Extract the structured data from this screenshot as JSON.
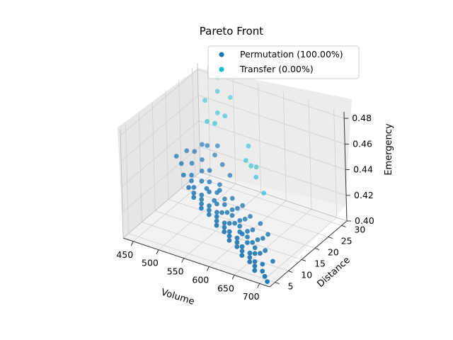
{
  "chart_data": {
    "type": "scatter3d",
    "title": "Pareto Front",
    "xlabel": "Volume",
    "ylabel": "Distance",
    "zlabel": "Emergency",
    "xlim": [
      430,
      720
    ],
    "ylim": [
      3,
      32
    ],
    "zlim": [
      0.4,
      0.485
    ],
    "xticks": [
      "450",
      "500",
      "550",
      "600",
      "650",
      "700"
    ],
    "yticks": [
      "5",
      "10",
      "15",
      "20",
      "25",
      "30"
    ],
    "zticks": [
      "0.40",
      "0.42",
      "0.44",
      "0.46",
      "0.48"
    ],
    "grid": true,
    "legend_position": "top-right",
    "series": [
      {
        "name": "Permutation (100.00%)",
        "color": "#1f77b4",
        "points": [
          [
            470,
            16,
            0.446
          ],
          [
            485,
            15,
            0.444
          ],
          [
            495,
            17,
            0.442
          ],
          [
            505,
            12,
            0.443
          ],
          [
            510,
            14,
            0.44
          ],
          [
            515,
            13,
            0.438
          ],
          [
            520,
            11,
            0.437
          ],
          [
            525,
            12,
            0.436
          ],
          [
            530,
            11,
            0.434
          ],
          [
            535,
            10,
            0.433
          ],
          [
            540,
            12,
            0.432
          ],
          [
            545,
            11,
            0.431
          ],
          [
            550,
            10,
            0.43
          ],
          [
            555,
            9,
            0.429
          ],
          [
            560,
            11,
            0.428
          ],
          [
            565,
            10,
            0.427
          ],
          [
            570,
            9,
            0.426
          ],
          [
            575,
            11,
            0.425
          ],
          [
            580,
            10,
            0.424
          ],
          [
            585,
            9,
            0.423
          ],
          [
            590,
            8,
            0.422
          ],
          [
            595,
            10,
            0.421
          ],
          [
            600,
            9,
            0.42
          ],
          [
            605,
            8,
            0.419
          ],
          [
            610,
            9,
            0.418
          ],
          [
            615,
            8,
            0.417
          ],
          [
            620,
            7,
            0.416
          ],
          [
            625,
            9,
            0.415
          ],
          [
            630,
            8,
            0.414
          ],
          [
            635,
            7,
            0.413
          ],
          [
            640,
            8,
            0.412
          ],
          [
            645,
            7,
            0.411
          ],
          [
            650,
            6,
            0.41
          ],
          [
            655,
            8,
            0.409
          ],
          [
            660,
            7,
            0.408
          ],
          [
            665,
            6,
            0.407
          ],
          [
            670,
            7,
            0.406
          ],
          [
            675,
            6,
            0.405
          ],
          [
            680,
            5,
            0.404
          ],
          [
            690,
            6,
            0.403
          ],
          [
            700,
            5,
            0.402
          ],
          [
            710,
            4,
            0.401
          ],
          [
            500,
            20,
            0.452
          ],
          [
            520,
            22,
            0.45
          ],
          [
            480,
            18,
            0.448
          ],
          [
            560,
            14,
            0.433
          ],
          [
            580,
            13,
            0.428
          ],
          [
            600,
            12,
            0.424
          ],
          [
            620,
            11,
            0.42
          ],
          [
            640,
            10,
            0.416
          ],
          [
            660,
            9,
            0.412
          ],
          [
            545,
            13,
            0.436
          ],
          [
            565,
            12,
            0.431
          ],
          [
            585,
            11,
            0.426
          ],
          [
            605,
            10,
            0.422
          ],
          [
            625,
            10,
            0.418
          ],
          [
            645,
            9,
            0.414
          ],
          [
            665,
            8,
            0.41
          ],
          [
            685,
            7,
            0.406
          ],
          [
            530,
            14,
            0.438
          ],
          [
            550,
            13,
            0.434
          ],
          [
            570,
            12,
            0.429
          ],
          [
            590,
            12,
            0.425
          ],
          [
            610,
            11,
            0.421
          ],
          [
            630,
            10,
            0.417
          ],
          [
            650,
            10,
            0.413
          ],
          [
            670,
            9,
            0.409
          ],
          [
            520,
            16,
            0.441
          ],
          [
            540,
            15,
            0.437
          ],
          [
            560,
            15,
            0.433
          ],
          [
            600,
            14,
            0.426
          ],
          [
            620,
            13,
            0.422
          ],
          [
            640,
            12,
            0.418
          ],
          [
            660,
            12,
            0.414
          ],
          [
            510,
            18,
            0.445
          ],
          [
            530,
            17,
            0.441
          ],
          [
            490,
            19,
            0.447
          ],
          [
            575,
            14,
            0.43
          ],
          [
            595,
            13,
            0.426
          ],
          [
            615,
            12,
            0.422
          ],
          [
            635,
            11,
            0.418
          ],
          [
            655,
            11,
            0.414
          ],
          [
            675,
            10,
            0.41
          ],
          [
            695,
            9,
            0.406
          ],
          [
            555,
            16,
            0.435
          ],
          [
            585,
            15,
            0.43
          ],
          [
            605,
            15,
            0.427
          ],
          [
            625,
            14,
            0.423
          ],
          [
            645,
            14,
            0.42
          ],
          [
            665,
            13,
            0.416
          ],
          [
            505,
            21,
            0.45
          ],
          [
            525,
            20,
            0.447
          ],
          [
            545,
            19,
            0.444
          ],
          [
            565,
            18,
            0.44
          ]
        ]
      },
      {
        "name": "Transfer (0.00%)",
        "color": "#17becf",
        "points": [
          [
            470,
            27,
            0.47
          ],
          [
            490,
            28,
            0.478
          ],
          [
            480,
            30,
            0.484
          ],
          [
            510,
            29,
            0.474
          ],
          [
            500,
            26,
            0.466
          ],
          [
            505,
            24,
            0.462
          ],
          [
            520,
            25,
            0.468
          ],
          [
            560,
            26,
            0.448
          ],
          [
            565,
            24,
            0.441
          ],
          [
            575,
            24,
            0.438
          ],
          [
            580,
            25,
            0.436
          ],
          [
            590,
            23,
            0.433
          ],
          [
            610,
            22,
            0.425
          ],
          [
            495,
            23,
            0.464
          ]
        ]
      }
    ]
  }
}
